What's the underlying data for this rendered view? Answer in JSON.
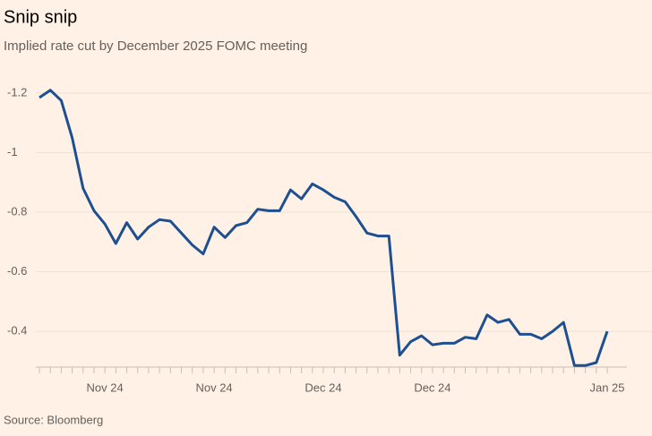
{
  "chart_data": {
    "type": "line",
    "title": "Snip snip",
    "subtitle": "Implied rate cut by December 2025 FOMC meeting",
    "source": "Source: Bloomberg",
    "categories": [
      null,
      null,
      null,
      null,
      null,
      null,
      "Nov 24",
      null,
      null,
      null,
      null,
      null,
      null,
      null,
      null,
      null,
      "Nov 24",
      null,
      null,
      null,
      null,
      null,
      null,
      null,
      null,
      null,
      "Dec 24",
      null,
      null,
      null,
      null,
      null,
      null,
      null,
      null,
      null,
      "Dec 24",
      null,
      null,
      null,
      null,
      null,
      null,
      null,
      null,
      null,
      null,
      null,
      null,
      null,
      null,
      null,
      "Jan 25"
    ],
    "series": [
      {
        "name": "Implied rate cut",
        "color": "#1d4f91",
        "values": [
          -1.185,
          -1.21,
          -1.175,
          -1.05,
          -0.88,
          -0.805,
          -0.76,
          -0.695,
          -0.765,
          -0.71,
          -0.75,
          -0.775,
          -0.77,
          -0.73,
          -0.69,
          -0.66,
          -0.75,
          -0.715,
          -0.755,
          -0.765,
          -0.81,
          -0.805,
          -0.805,
          -0.875,
          -0.845,
          -0.895,
          -0.875,
          -0.85,
          -0.835,
          -0.785,
          -0.73,
          -0.72,
          -0.72,
          -0.32,
          -0.365,
          -0.385,
          -0.355,
          -0.36,
          -0.36,
          -0.38,
          -0.375,
          -0.455,
          -0.43,
          -0.44,
          -0.39,
          -0.39,
          -0.375,
          -0.4,
          -0.43,
          -0.285,
          -0.285,
          -0.295,
          -0.4
        ]
      }
    ],
    "ylim": [
      -0.28,
      -1.27
    ],
    "yticks": [
      -1.2,
      -1.0,
      -0.8,
      -0.6,
      -0.4
    ],
    "grid": true
  }
}
